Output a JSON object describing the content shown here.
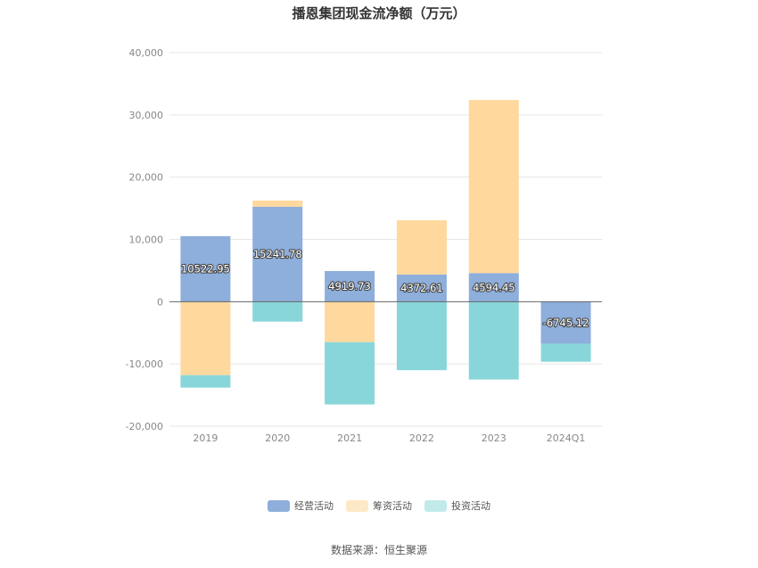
{
  "chart_data": {
    "type": "bar",
    "stacked": true,
    "title": "播恩集团现金流净额（万元）",
    "categories": [
      "2019",
      "2020",
      "2021",
      "2022",
      "2023",
      "2024Q1"
    ],
    "series": [
      {
        "name": "经营活动",
        "color": "#8eaedb",
        "values": [
          10522.95,
          15241.78,
          4919.73,
          4372.61,
          4594.45,
          -6745.12
        ],
        "labels": [
          "10522.95",
          "15241.78",
          "4919.73",
          "4372.61",
          "4594.45",
          "-6745.12"
        ]
      },
      {
        "name": "筹资活动",
        "color": "#fed89d",
        "values": [
          -11800,
          1000,
          -6500,
          8700,
          27800,
          0
        ]
      },
      {
        "name": "投资活动",
        "color": "#88d6d9",
        "values": [
          -2000,
          -3200,
          -10000,
          -11000,
          -12500,
          -2900
        ]
      }
    ],
    "y_ticks": [
      "40,000",
      "30,000",
      "20,000",
      "10,000",
      "0",
      "-10,000",
      "-20,000"
    ],
    "ylim": [
      -20000,
      40000
    ],
    "grid": true,
    "legend_position": "bottom"
  },
  "legend_colors": [
    "#8eaedb",
    "#fee9c6",
    "#c2eaeb"
  ],
  "source": "数据来源：恒生聚源"
}
